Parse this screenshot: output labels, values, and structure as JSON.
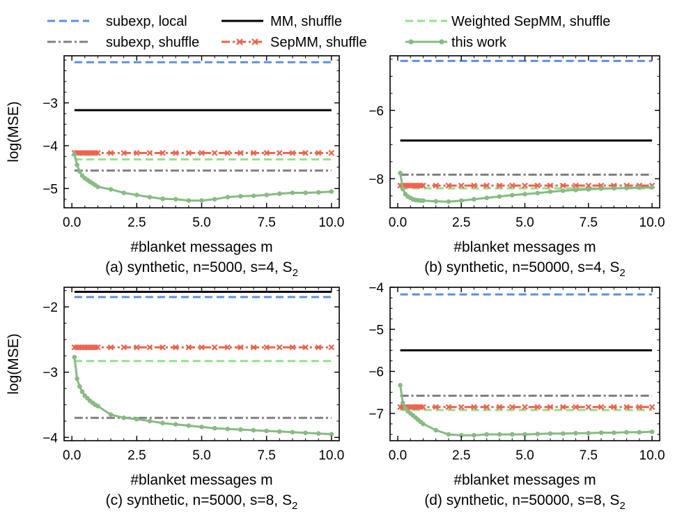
{
  "legend": [
    {
      "label": "subexp, local",
      "color": "#5b8fe6",
      "style": "dashed"
    },
    {
      "label": "MM, shuffle",
      "color": "#000000",
      "style": "solid"
    },
    {
      "label": "Weighted SepMM, shuffle",
      "color": "#90e28a",
      "style": "dashed"
    },
    {
      "label": "subexp, shuffle",
      "color": "#808080",
      "style": "dashdot"
    },
    {
      "label": "SepMM, shuffle",
      "color": "#f0604a",
      "style": "dashdot-x"
    },
    {
      "label": "this work",
      "color": "#86bb82",
      "style": "solid-dot"
    }
  ],
  "chart_data": [
    {
      "type": "line",
      "caption_main": "(a) synthetic, n=5000, s=4, S",
      "caption_sub": "2",
      "xlabel": "#blanket messages m",
      "ylabel": "log(MSE)",
      "xlim": [
        -0.3,
        10.3
      ],
      "ylim": [
        -5.45,
        -1.9
      ],
      "xticks": [
        0.0,
        2.5,
        5.0,
        7.5,
        10.0
      ],
      "xtick_labels": [
        "0.0",
        "2.5",
        "5.0",
        "7.5",
        "10.0"
      ],
      "yticks": [
        -3,
        -4,
        -5
      ],
      "ytick_labels": [
        "−3",
        "−4",
        "−5"
      ],
      "hlines": {
        "subexp_local": -2.05,
        "mm_shuffle": -3.17,
        "sepmm_shuffle": -4.17,
        "weighted_sepmm": -4.32,
        "subexp_shuffle": -4.58
      },
      "this_work": {
        "x": [
          0.1,
          0.2,
          0.3,
          0.4,
          0.5,
          0.6,
          0.7,
          0.8,
          0.9,
          1.0,
          1.5,
          2.0,
          2.5,
          3.0,
          3.5,
          4.0,
          4.5,
          5.0,
          5.5,
          6.0,
          6.5,
          7.0,
          7.5,
          8.0,
          8.5,
          9.0,
          9.5,
          10.0
        ],
        "y": [
          -4.2,
          -4.45,
          -4.6,
          -4.7,
          -4.76,
          -4.8,
          -4.84,
          -4.88,
          -4.92,
          -4.96,
          -5.02,
          -5.1,
          -5.15,
          -5.2,
          -5.24,
          -5.25,
          -5.28,
          -5.28,
          -5.25,
          -5.2,
          -5.18,
          -5.17,
          -5.15,
          -5.12,
          -5.1,
          -5.1,
          -5.09,
          -5.07
        ]
      }
    },
    {
      "type": "line",
      "caption_main": "(b) synthetic, n=50000, s=4, S",
      "caption_sub": "2",
      "xlabel": "#blanket messages m",
      "ylabel": "",
      "xlim": [
        -0.3,
        10.3
      ],
      "ylim": [
        -8.85,
        -4.4
      ],
      "xticks": [
        0.0,
        2.5,
        5.0,
        7.5,
        10.0
      ],
      "xtick_labels": [
        "0.0",
        "2.5",
        "5.0",
        "7.5",
        "10.0"
      ],
      "yticks": [
        -6,
        -8
      ],
      "ytick_labels": [
        "−6",
        "−8"
      ],
      "hlines": {
        "subexp_local": -4.55,
        "mm_shuffle": -6.88,
        "subexp_shuffle": -7.88,
        "sepmm_shuffle": -8.2,
        "weighted_sepmm": -8.28
      },
      "this_work": {
        "x": [
          0.1,
          0.2,
          0.3,
          0.4,
          0.5,
          0.6,
          0.7,
          0.8,
          0.9,
          1.0,
          1.5,
          2.0,
          2.5,
          3.0,
          3.5,
          4.0,
          4.5,
          5.0,
          5.5,
          6.0,
          6.5,
          7.0,
          7.5,
          8.0,
          8.5,
          9.0,
          9.5,
          10.0
        ],
        "y": [
          -7.83,
          -8.3,
          -8.45,
          -8.52,
          -8.56,
          -8.6,
          -8.62,
          -8.63,
          -8.64,
          -8.64,
          -8.66,
          -8.67,
          -8.64,
          -8.6,
          -8.56,
          -8.52,
          -8.48,
          -8.45,
          -8.42,
          -8.38,
          -8.35,
          -8.33,
          -8.31,
          -8.29,
          -8.28,
          -8.27,
          -8.26,
          -8.25
        ]
      }
    },
    {
      "type": "line",
      "caption_main": "(c) synthetic, n=5000, s=8, S",
      "caption_sub": "2",
      "xlabel": "#blanket messages m",
      "ylabel": "log(MSE)",
      "xlim": [
        -0.3,
        10.3
      ],
      "ylim": [
        -4.05,
        -1.7
      ],
      "xticks": [
        0.0,
        2.5,
        5.0,
        7.5,
        10.0
      ],
      "xtick_labels": [
        "0.0",
        "2.5",
        "5.0",
        "7.5",
        "10.0"
      ],
      "yticks": [
        -2,
        -3,
        -4
      ],
      "ytick_labels": [
        "−2",
        "−3",
        "−4"
      ],
      "hlines": {
        "mm_shuffle": -1.77,
        "subexp_local": -1.85,
        "sepmm_shuffle": -2.62,
        "weighted_sepmm": -2.83,
        "subexp_shuffle": -3.7
      },
      "this_work": {
        "x": [
          0.1,
          0.2,
          0.3,
          0.4,
          0.5,
          0.6,
          0.7,
          0.8,
          0.9,
          1.0,
          1.5,
          2.0,
          2.5,
          3.0,
          3.5,
          4.0,
          4.5,
          5.0,
          5.5,
          6.0,
          6.5,
          7.0,
          7.5,
          8.0,
          8.5,
          9.0,
          9.5,
          10.0
        ],
        "y": [
          -2.77,
          -3.1,
          -3.22,
          -3.3,
          -3.36,
          -3.4,
          -3.44,
          -3.47,
          -3.5,
          -3.52,
          -3.65,
          -3.7,
          -3.72,
          -3.75,
          -3.78,
          -3.8,
          -3.82,
          -3.84,
          -3.86,
          -3.87,
          -3.88,
          -3.89,
          -3.9,
          -3.91,
          -3.92,
          -3.93,
          -3.94,
          -3.95
        ]
      }
    },
    {
      "type": "line",
      "caption_main": "(d) synthetic, n=50000, s=8, S",
      "caption_sub": "2",
      "xlabel": "#blanket messages m",
      "ylabel": "",
      "xlim": [
        -0.3,
        10.3
      ],
      "ylim": [
        -7.65,
        -4.0
      ],
      "xticks": [
        0.0,
        2.5,
        5.0,
        7.5,
        10.0
      ],
      "xtick_labels": [
        "0.0",
        "2.5",
        "5.0",
        "7.5",
        "10.0"
      ],
      "yticks": [
        -4,
        -5,
        -6,
        -7
      ],
      "ytick_labels": [
        "−4",
        "−5",
        "−6",
        "−7"
      ],
      "hlines": {
        "subexp_local": -4.17,
        "mm_shuffle": -5.5,
        "subexp_shuffle": -6.58,
        "sepmm_shuffle": -6.85,
        "weighted_sepmm": -6.92
      },
      "this_work": {
        "x": [
          0.1,
          0.2,
          0.3,
          0.4,
          0.5,
          0.6,
          0.7,
          0.8,
          0.9,
          1.0,
          1.5,
          2.0,
          2.5,
          3.0,
          3.5,
          4.0,
          4.5,
          5.0,
          5.5,
          6.0,
          6.5,
          7.0,
          7.5,
          8.0,
          8.5,
          9.0,
          9.5,
          10.0
        ],
        "y": [
          -6.33,
          -6.75,
          -6.88,
          -6.95,
          -7.0,
          -7.05,
          -7.1,
          -7.15,
          -7.2,
          -7.25,
          -7.4,
          -7.5,
          -7.52,
          -7.52,
          -7.5,
          -7.5,
          -7.5,
          -7.5,
          -7.49,
          -7.48,
          -7.48,
          -7.47,
          -7.47,
          -7.46,
          -7.46,
          -7.45,
          -7.45,
          -7.44
        ]
      }
    }
  ]
}
